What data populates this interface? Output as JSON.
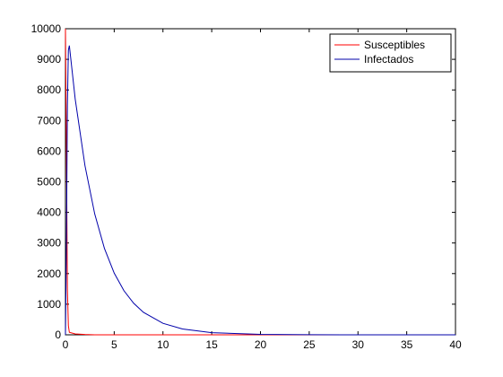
{
  "chart_data": {
    "type": "line",
    "x": [
      0,
      0.1,
      0.2,
      0.3,
      0.4,
      1,
      2,
      3,
      4,
      5,
      6,
      7,
      8,
      10,
      12,
      15,
      20,
      25,
      30,
      40
    ],
    "series": [
      {
        "name": "Susceptibles",
        "color": "#ff0000",
        "values": [
          10000,
          6000,
          1500,
          300,
          80,
          30,
          10,
          0,
          0,
          0,
          0,
          0,
          0,
          0,
          0,
          0,
          0,
          0,
          0,
          0
        ]
      },
      {
        "name": "Infectados",
        "color": "#0000aa",
        "values": [
          0,
          3000,
          7500,
          9300,
          9450,
          7700,
          5530,
          3950,
          2820,
          2015,
          1440,
          1030,
          735,
          375,
          190,
          70,
          13,
          2,
          0,
          0
        ]
      }
    ],
    "xlim": [
      0,
      40
    ],
    "xticks": [
      0,
      5,
      10,
      15,
      20,
      25,
      30,
      35,
      40
    ],
    "ylim": [
      0,
      10000
    ],
    "yticks": [
      0,
      1000,
      2000,
      3000,
      4000,
      5000,
      6000,
      7000,
      8000,
      9000,
      10000
    ],
    "legend_position": "upper-right"
  }
}
